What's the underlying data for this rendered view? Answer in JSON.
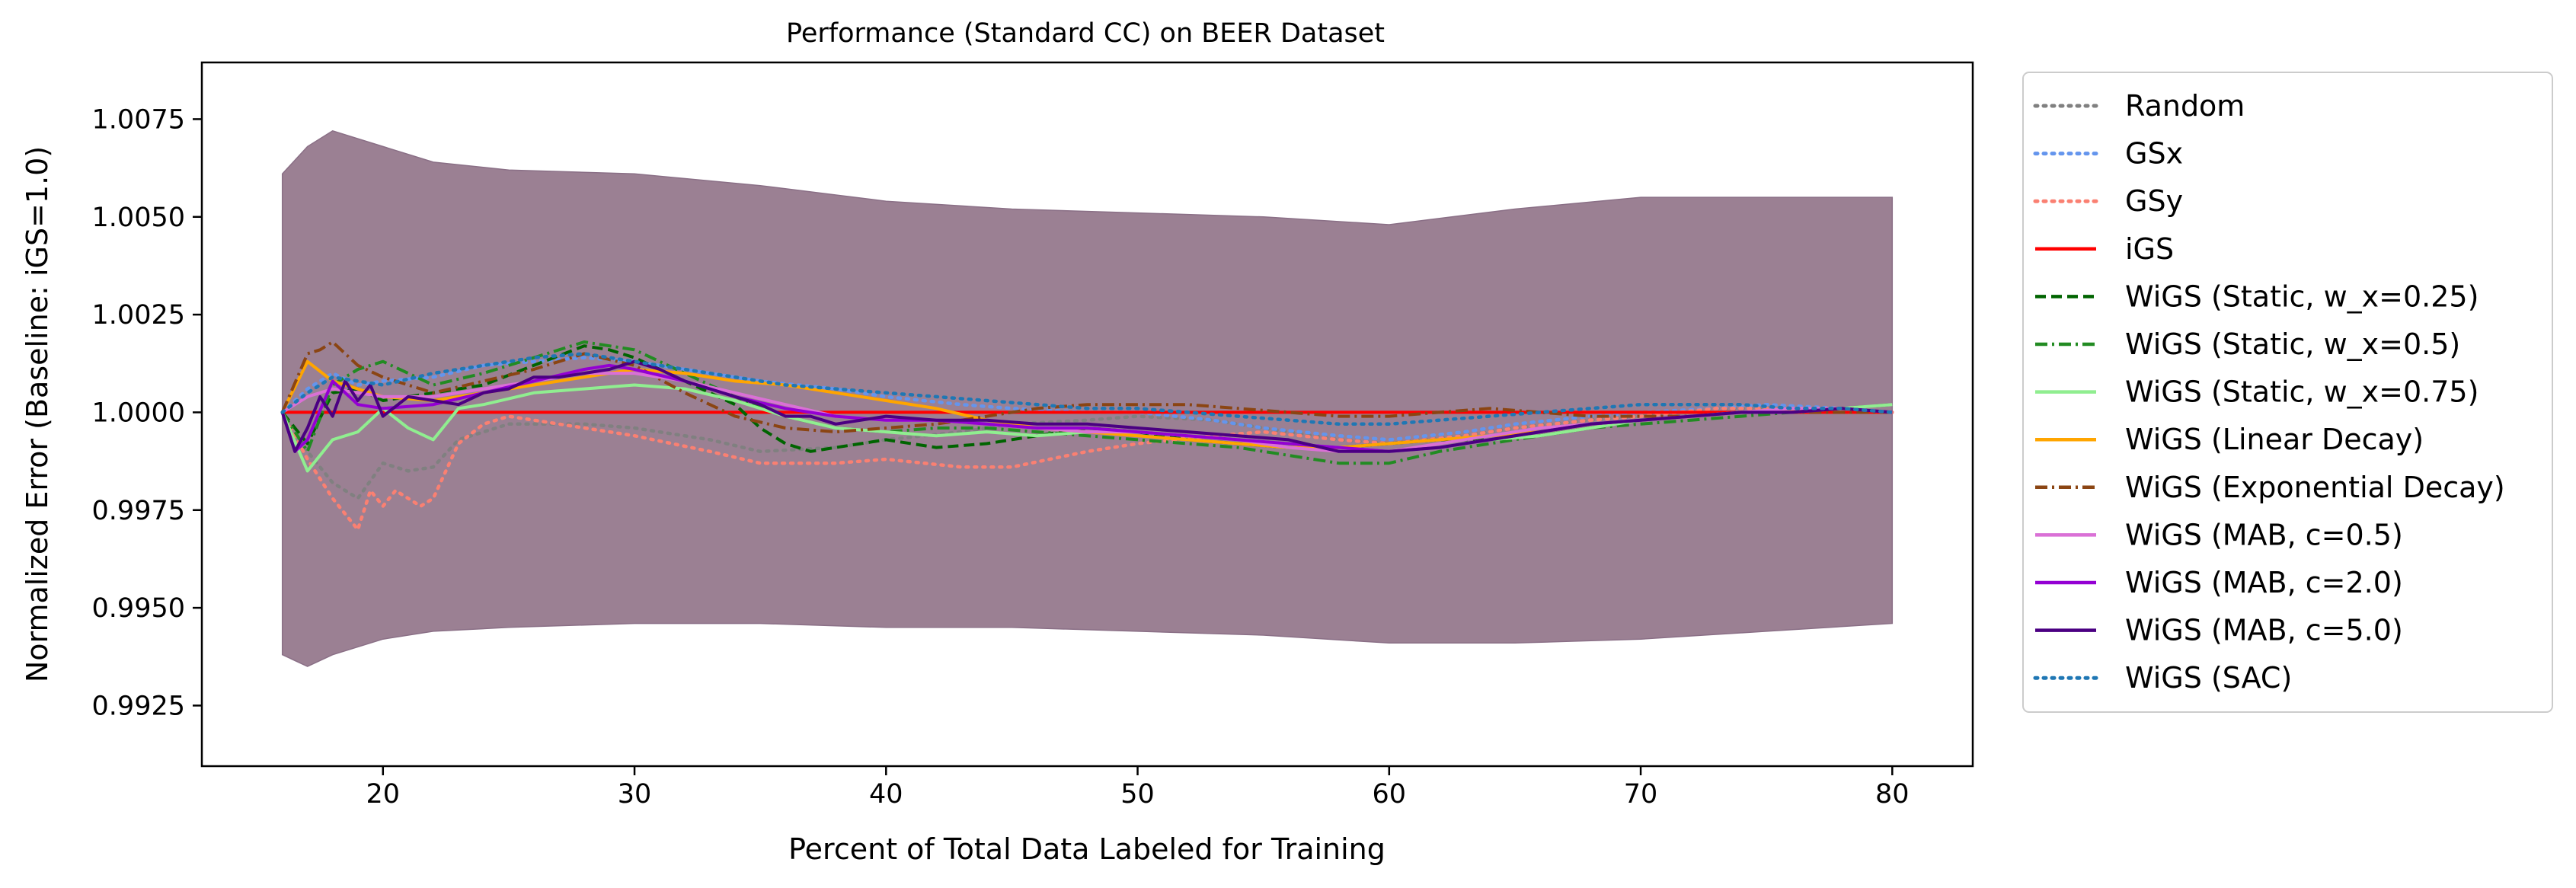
{
  "chart_data": {
    "type": "line",
    "title": "Performance (Standard CC) on BEER Dataset",
    "xlabel": "Percent of Total Data Labeled for Training",
    "ylabel": "Normalized Error (Baseline: iGS=1.0)",
    "xlim": [
      12.8,
      83.2
    ],
    "ylim": [
      0.99095,
      1.00895
    ],
    "xticks": [
      20,
      30,
      40,
      50,
      60,
      70,
      80
    ],
    "yticks": [
      0.9925,
      0.995,
      0.9975,
      1.0,
      1.0025,
      1.005,
      1.0075
    ],
    "xtick_labels": [
      "20",
      "30",
      "40",
      "50",
      "60",
      "70",
      "80"
    ],
    "ytick_labels": [
      "0.9925",
      "0.9950",
      "0.9975",
      "1.0000",
      "1.0025",
      "1.0050",
      "1.0075"
    ],
    "grid": false,
    "legend_position": "outside-right",
    "band": {
      "color": "#9b8093",
      "x": [
        16,
        17,
        18,
        20,
        22,
        25,
        30,
        35,
        40,
        45,
        50,
        55,
        60,
        65,
        70,
        75,
        80
      ],
      "upper": [
        1.0061,
        1.0068,
        1.0072,
        1.0068,
        1.0064,
        1.0062,
        1.0061,
        1.0058,
        1.0054,
        1.0052,
        1.0051,
        1.005,
        1.0048,
        1.0052,
        1.0055,
        1.0055,
        1.0055
      ],
      "lower": [
        0.9938,
        0.9935,
        0.9938,
        0.9942,
        0.9944,
        0.9945,
        0.9946,
        0.9946,
        0.9945,
        0.9945,
        0.9944,
        0.9943,
        0.9941,
        0.9941,
        0.9942,
        0.9944,
        0.9946
      ]
    },
    "series": [
      {
        "name": "Random",
        "color": "#808080",
        "dash": "dotted",
        "x": [
          16,
          17,
          18,
          19,
          20,
          21,
          22,
          23,
          25,
          28,
          30,
          33,
          35,
          38,
          40,
          43,
          45,
          48,
          50,
          53,
          55,
          58,
          60,
          63,
          65,
          68,
          70,
          73,
          75,
          78,
          80
        ],
        "y": [
          1.0,
          0.999,
          0.9982,
          0.9978,
          0.9987,
          0.9985,
          0.9986,
          0.9993,
          0.9997,
          0.9997,
          0.9996,
          0.9993,
          0.999,
          0.9991,
          0.9993,
          0.9995,
          0.9997,
          0.9998,
          0.9999,
          0.9998,
          0.9996,
          0.9993,
          0.9992,
          0.9994,
          0.9996,
          0.9998,
          0.9999,
          1.0001,
          1.0001,
          1.0,
          1.0
        ]
      },
      {
        "name": "GSx",
        "color": "#6495ed",
        "dash": "dotted",
        "x": [
          16,
          17,
          18,
          19,
          20,
          22,
          24,
          26,
          28,
          30,
          32,
          35,
          38,
          40,
          43,
          45,
          48,
          50,
          53,
          55,
          58,
          60,
          63,
          65,
          68,
          70,
          73,
          75,
          78,
          80
        ],
        "y": [
          1.0,
          1.0006,
          1.001,
          1.0007,
          1.0008,
          1.0009,
          1.0012,
          1.0013,
          1.0014,
          1.0013,
          1.0011,
          1.0008,
          1.0006,
          1.0004,
          1.0002,
          1.0001,
          1.0,
          1.0,
          0.9998,
          0.9996,
          0.9994,
          0.9993,
          0.9995,
          0.9997,
          0.9999,
          1.0,
          1.0001,
          1.0002,
          1.0001,
          1.0
        ]
      },
      {
        "name": "GSy",
        "color": "#fa8072",
        "dash": "dotted",
        "x": [
          16,
          17,
          18,
          18.5,
          19,
          19.5,
          20,
          20.5,
          21,
          21.5,
          22,
          23,
          24,
          25,
          27,
          30,
          33,
          35,
          38,
          40,
          43,
          45,
          48,
          50,
          53,
          55,
          58,
          60,
          63,
          65,
          68,
          70,
          73,
          75,
          78,
          80
        ],
        "y": [
          1.0,
          0.9988,
          0.9978,
          0.9974,
          0.997,
          0.998,
          0.9976,
          0.998,
          0.9978,
          0.9976,
          0.9978,
          0.9992,
          0.9997,
          0.9999,
          0.9997,
          0.9994,
          0.999,
          0.9987,
          0.9987,
          0.9988,
          0.9986,
          0.9986,
          0.999,
          0.9992,
          0.9994,
          0.9995,
          0.9993,
          0.9992,
          0.9994,
          0.9996,
          0.9998,
          0.9999,
          1.0001,
          1.0001,
          1.0,
          1.0
        ]
      },
      {
        "name": "iGS",
        "color": "#ff0000",
        "dash": "solid",
        "x": [
          16,
          80
        ],
        "y": [
          1.0,
          1.0
        ]
      },
      {
        "name": "WiGS (Static, w_x=0.25)",
        "color": "#006400",
        "dash": "dashed",
        "x": [
          16,
          17,
          18,
          19,
          20,
          22,
          24,
          26,
          28,
          29,
          30,
          32,
          34,
          35,
          36,
          37,
          38,
          40,
          42,
          44,
          46,
          48,
          50,
          52,
          54,
          56,
          58,
          60,
          62,
          64,
          66,
          68,
          70,
          72,
          74,
          76,
          78,
          80
        ],
        "y": [
          1.0,
          0.9992,
          1.0005,
          1.0006,
          1.0003,
          1.0005,
          1.0007,
          1.0012,
          1.0017,
          1.0016,
          1.0014,
          1.0008,
          1.0002,
          0.9996,
          0.9992,
          0.999,
          0.9991,
          0.9993,
          0.9991,
          0.9992,
          0.9994,
          0.9996,
          0.9995,
          0.9993,
          0.9992,
          0.9991,
          0.9991,
          0.9992,
          0.9993,
          0.9993,
          0.9994,
          0.9996,
          0.9998,
          0.9999,
          1.0,
          1.0,
          1.0001,
          1.0
        ]
      },
      {
        "name": "WiGS (Static, w_x=0.5)",
        "color": "#228b22",
        "dash": "dashdot",
        "x": [
          16,
          17,
          18,
          19,
          20,
          21,
          22,
          24,
          26,
          28,
          30,
          32,
          34,
          36,
          38,
          40,
          42,
          44,
          46,
          48,
          50,
          52,
          54,
          56,
          58,
          60,
          62,
          64,
          66,
          68,
          70,
          72,
          74,
          76,
          78,
          80
        ],
        "y": [
          1.0,
          0.999,
          1.0007,
          1.0011,
          1.0013,
          1.001,
          1.0007,
          1.001,
          1.0014,
          1.0018,
          1.0016,
          1.001,
          1.0004,
          0.9999,
          0.9996,
          0.9995,
          0.9996,
          0.9996,
          0.9995,
          0.9994,
          0.9993,
          0.9992,
          0.9991,
          0.9989,
          0.9987,
          0.9987,
          0.999,
          0.9992,
          0.9994,
          0.9996,
          0.9997,
          0.9998,
          0.9999,
          1.0,
          1.0001,
          1.0002
        ]
      },
      {
        "name": "WiGS (Static, w_x=0.75)",
        "color": "#90ee90",
        "dash": "solid",
        "x": [
          16,
          17,
          18,
          19,
          20,
          21,
          22,
          23,
          24,
          26,
          28,
          30,
          32,
          34,
          36,
          38,
          40,
          42,
          44,
          46,
          48,
          50,
          52,
          54,
          56,
          58,
          60,
          62,
          64,
          66,
          68,
          70,
          72,
          74,
          76,
          78,
          80
        ],
        "y": [
          1.0,
          0.9985,
          0.9993,
          0.9995,
          1.0001,
          0.9996,
          0.9993,
          1.0001,
          1.0002,
          1.0005,
          1.0006,
          1.0007,
          1.0006,
          1.0003,
          0.9999,
          0.9996,
          0.9995,
          0.9994,
          0.9995,
          0.9994,
          0.9995,
          0.9995,
          0.9994,
          0.9993,
          0.9992,
          0.9991,
          0.999,
          0.9991,
          0.9993,
          0.9994,
          0.9996,
          0.9998,
          0.9999,
          1.0,
          1.0,
          1.0001,
          1.0002
        ]
      },
      {
        "name": "WiGS (Linear Decay)",
        "color": "#ffa500",
        "dash": "solid",
        "x": [
          16,
          17,
          18,
          19,
          20,
          22,
          24,
          26,
          28,
          30,
          32,
          34,
          36,
          38,
          40,
          42,
          44,
          46,
          48,
          50,
          52,
          54,
          56,
          58,
          60,
          62,
          64,
          66,
          68,
          70,
          72,
          74,
          76,
          78,
          80
        ],
        "y": [
          1.0,
          1.0013,
          1.0008,
          1.0006,
          1.0004,
          1.0003,
          1.0005,
          1.0007,
          1.0009,
          1.0011,
          1.001,
          1.0008,
          1.0007,
          1.0005,
          1.0003,
          1.0001,
          0.9998,
          0.9996,
          0.9995,
          0.9994,
          0.9993,
          0.9992,
          0.9991,
          0.9991,
          0.9992,
          0.9993,
          0.9994,
          0.9995,
          0.9997,
          0.9998,
          0.9999,
          1.0,
          1.0001,
          1.0001,
          1.0
        ]
      },
      {
        "name": "WiGS (Exponential Decay)",
        "color": "#8b4513",
        "dash": "dashdot",
        "x": [
          16,
          17,
          17.5,
          18,
          19,
          20,
          22,
          24,
          26,
          28,
          30,
          32,
          34,
          36,
          38,
          40,
          42,
          44,
          46,
          48,
          50,
          52,
          54,
          56,
          58,
          60,
          62,
          64,
          66,
          68,
          70,
          72,
          74,
          76,
          78,
          80
        ],
        "y": [
          1.0,
          1.0015,
          1.0016,
          1.0018,
          1.0012,
          1.0009,
          1.0005,
          1.0008,
          1.0011,
          1.0015,
          1.0012,
          1.0005,
          0.9999,
          0.9996,
          0.9995,
          0.9996,
          0.9997,
          0.9999,
          1.0001,
          1.0002,
          1.0002,
          1.0002,
          1.0001,
          1.0,
          0.9999,
          0.9999,
          1.0,
          1.0001,
          1.0,
          0.9999,
          0.9999,
          0.9999,
          1.0,
          1.0,
          1.0,
          1.0
        ]
      },
      {
        "name": "WiGS (MAB, c=0.5)",
        "color": "#da70d6",
        "dash": "solid",
        "x": [
          16,
          17,
          18,
          19,
          20,
          22,
          24,
          26,
          28,
          30,
          32,
          34,
          36,
          38,
          40,
          42,
          44,
          46,
          48,
          50,
          52,
          54,
          56,
          58,
          60,
          62,
          64,
          66,
          68,
          70,
          72,
          74,
          76,
          78,
          80
        ],
        "y": [
          1.0,
          1.0004,
          1.0006,
          1.0005,
          1.0004,
          1.0004,
          1.0006,
          1.0008,
          1.001,
          1.001,
          1.0008,
          1.0005,
          1.0002,
          0.9999,
          0.9998,
          0.9998,
          0.9997,
          0.9996,
          0.9995,
          0.9995,
          0.9994,
          0.9993,
          0.9991,
          0.999,
          0.999,
          0.9992,
          0.9994,
          0.9996,
          0.9997,
          0.9998,
          0.9999,
          1.0,
          1.0001,
          1.0001,
          1.0
        ]
      },
      {
        "name": "WiGS (MAB, c=2.0)",
        "color": "#9400d3",
        "dash": "solid",
        "x": [
          16,
          16.5,
          17,
          18,
          19,
          20,
          22,
          24,
          26,
          28,
          29,
          30,
          32,
          34,
          36,
          38,
          40,
          42,
          44,
          46,
          48,
          50,
          52,
          54,
          56,
          58,
          60,
          62,
          64,
          66,
          68,
          70,
          72,
          74,
          76,
          78,
          80
        ],
        "y": [
          1.0,
          0.999,
          0.9993,
          1.0008,
          1.0002,
          1.0001,
          1.0002,
          1.0005,
          1.0008,
          1.0011,
          1.0012,
          1.0011,
          1.0008,
          1.0004,
          1.0001,
          0.9999,
          0.9998,
          0.9998,
          0.9997,
          0.9996,
          0.9996,
          0.9995,
          0.9994,
          0.9993,
          0.9992,
          0.9991,
          0.999,
          0.9991,
          0.9993,
          0.9995,
          0.9997,
          0.9998,
          0.9999,
          1.0,
          1.0,
          1.0001,
          1.0
        ]
      },
      {
        "name": "WiGS (MAB, c=5.0)",
        "color": "#4b0082",
        "dash": "solid",
        "x": [
          16,
          16.5,
          17,
          17.5,
          18,
          18.5,
          19,
          19.5,
          20,
          21,
          22,
          23,
          24,
          25,
          26,
          27,
          28,
          29,
          30,
          31,
          32,
          33,
          34,
          35,
          36,
          37,
          38,
          40,
          42,
          44,
          46,
          48,
          50,
          52,
          54,
          56,
          58,
          60,
          62,
          64,
          66,
          68,
          70,
          72,
          74,
          76,
          78,
          80
        ],
        "y": [
          1.0,
          0.999,
          0.9996,
          1.0004,
          0.9999,
          1.0008,
          1.0003,
          1.0007,
          0.9999,
          1.0004,
          1.0003,
          1.0002,
          1.0005,
          1.0006,
          1.0009,
          1.0009,
          1.001,
          1.0011,
          1.0013,
          1.0011,
          1.0008,
          1.0006,
          1.0004,
          1.0002,
          0.9999,
          0.9999,
          0.9997,
          0.9999,
          0.9998,
          0.9998,
          0.9997,
          0.9997,
          0.9996,
          0.9995,
          0.9994,
          0.9993,
          0.999,
          0.999,
          0.9991,
          0.9993,
          0.9995,
          0.9997,
          0.9998,
          0.9999,
          1.0,
          1.0,
          1.0001,
          1.0
        ]
      },
      {
        "name": "WiGS (SAC)",
        "color": "#1f77b4",
        "dash": "dotted",
        "x": [
          16,
          17,
          18,
          19,
          20,
          22,
          24,
          26,
          28,
          30,
          32,
          34,
          36,
          38,
          40,
          42,
          44,
          46,
          48,
          50,
          52,
          54,
          56,
          58,
          60,
          62,
          64,
          66,
          68,
          70,
          72,
          74,
          76,
          78,
          80
        ],
        "y": [
          1.0,
          1.0005,
          1.0009,
          1.0008,
          1.0007,
          1.001,
          1.0012,
          1.0014,
          1.0015,
          1.0013,
          1.0011,
          1.0009,
          1.0007,
          1.0006,
          1.0005,
          1.0004,
          1.0003,
          1.0002,
          1.0001,
          1.0001,
          1.0,
          0.9999,
          0.9998,
          0.9997,
          0.9997,
          0.9998,
          0.9999,
          1.0,
          1.0001,
          1.0002,
          1.0002,
          1.0002,
          1.0001,
          1.0001,
          1.0
        ]
      }
    ]
  }
}
